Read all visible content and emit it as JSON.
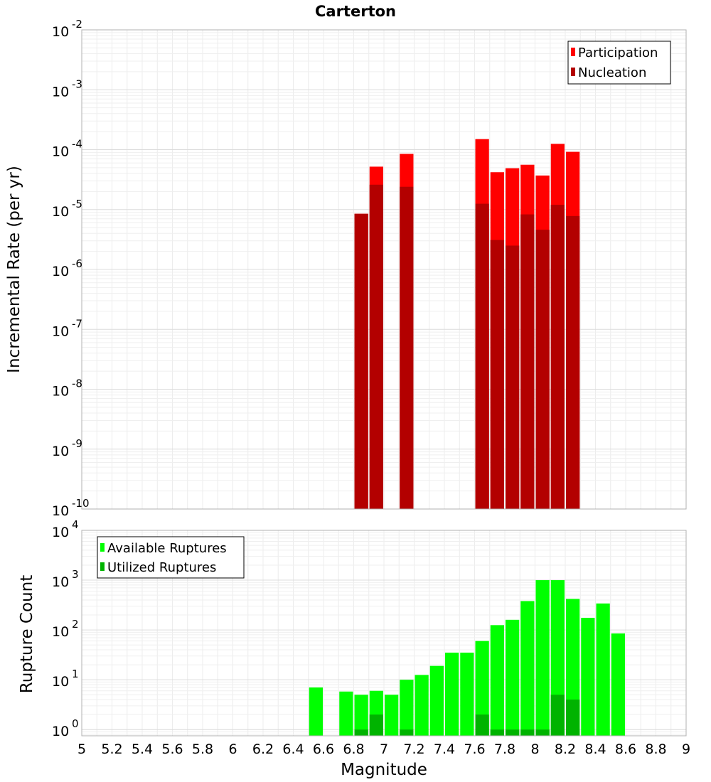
{
  "chart_data": [
    {
      "type": "bar",
      "title": "Carterton",
      "ylabel": "Incremental Rate (per yr)",
      "xlim": [
        5,
        9
      ],
      "ylim": [
        1e-10,
        0.01
      ],
      "yscale": "log",
      "grid": true,
      "legend": "top-right",
      "y_ticks": [
        {
          "base": "10",
          "exp": "-10"
        },
        {
          "base": "10",
          "exp": "-9"
        },
        {
          "base": "10",
          "exp": "-8"
        },
        {
          "base": "10",
          "exp": "-7"
        },
        {
          "base": "10",
          "exp": "-6"
        },
        {
          "base": "10",
          "exp": "-5"
        },
        {
          "base": "10",
          "exp": "-4"
        },
        {
          "base": "10",
          "exp": "-3"
        },
        {
          "base": "10",
          "exp": "-2"
        }
      ],
      "series": [
        {
          "name": "Participation",
          "color": "#ff0000",
          "points": [
            {
              "x": 6.85,
              "y": 8.5e-06
            },
            {
              "x": 6.95,
              "y": 5.2e-05
            },
            {
              "x": 7.15,
              "y": 8.5e-05
            },
            {
              "x": 7.65,
              "y": 0.00015
            },
            {
              "x": 7.75,
              "y": 4.2e-05
            },
            {
              "x": 7.85,
              "y": 4.9e-05
            },
            {
              "x": 7.95,
              "y": 5.6e-05
            },
            {
              "x": 8.05,
              "y": 3.7e-05
            },
            {
              "x": 8.15,
              "y": 0.000125
            },
            {
              "x": 8.25,
              "y": 9.2e-05
            }
          ]
        },
        {
          "name": "Nucleation",
          "color": "#b30000",
          "points": [
            {
              "x": 6.85,
              "y": 8.5e-06
            },
            {
              "x": 6.95,
              "y": 2.6e-05
            },
            {
              "x": 7.15,
              "y": 2.4e-05
            },
            {
              "x": 7.65,
              "y": 1.25e-05
            },
            {
              "x": 7.75,
              "y": 3.1e-06
            },
            {
              "x": 7.85,
              "y": 2.5e-06
            },
            {
              "x": 7.95,
              "y": 8.3e-06
            },
            {
              "x": 8.05,
              "y": 4.6e-06
            },
            {
              "x": 8.15,
              "y": 1.2e-05
            },
            {
              "x": 8.25,
              "y": 7.8e-06
            }
          ]
        }
      ]
    },
    {
      "type": "bar",
      "xlabel": "Magnitude",
      "ylabel": "Rupture Count",
      "xlim": [
        5,
        9
      ],
      "ylim": [
        0.75,
        10000
      ],
      "yscale": "log",
      "grid": true,
      "legend": "top-left",
      "x_ticks": [
        "5",
        "5.2",
        "5.4",
        "5.6",
        "5.8",
        "6",
        "6.2",
        "6.4",
        "6.6",
        "6.8",
        "7",
        "7.2",
        "7.4",
        "7.6",
        "7.8",
        "8",
        "8.2",
        "8.4",
        "8.6",
        "8.8",
        "9"
      ],
      "y_ticks": [
        {
          "base": "10",
          "exp": "0"
        },
        {
          "base": "10",
          "exp": "1"
        },
        {
          "base": "10",
          "exp": "2"
        },
        {
          "base": "10",
          "exp": "3"
        },
        {
          "base": "10",
          "exp": "4"
        }
      ],
      "series": [
        {
          "name": "Available Ruptures",
          "color": "#00ff00",
          "points": [
            {
              "x": 6.55,
              "y": 7
            },
            {
              "x": 6.75,
              "y": 5.8
            },
            {
              "x": 6.85,
              "y": 5
            },
            {
              "x": 6.95,
              "y": 6
            },
            {
              "x": 7.05,
              "y": 5
            },
            {
              "x": 7.15,
              "y": 10
            },
            {
              "x": 7.25,
              "y": 12.5
            },
            {
              "x": 7.35,
              "y": 19
            },
            {
              "x": 7.45,
              "y": 35
            },
            {
              "x": 7.55,
              "y": 35
            },
            {
              "x": 7.65,
              "y": 60
            },
            {
              "x": 7.75,
              "y": 125
            },
            {
              "x": 7.85,
              "y": 160
            },
            {
              "x": 7.95,
              "y": 380
            },
            {
              "x": 8.05,
              "y": 1000
            },
            {
              "x": 8.15,
              "y": 1000
            },
            {
              "x": 8.25,
              "y": 420
            },
            {
              "x": 8.35,
              "y": 175
            },
            {
              "x": 8.45,
              "y": 340
            },
            {
              "x": 8.55,
              "y": 85
            }
          ]
        },
        {
          "name": "Utilized Ruptures",
          "color": "#00b300",
          "points": [
            {
              "x": 6.85,
              "y": 1
            },
            {
              "x": 6.95,
              "y": 2
            },
            {
              "x": 7.15,
              "y": 1
            },
            {
              "x": 7.65,
              "y": 2
            },
            {
              "x": 7.75,
              "y": 1
            },
            {
              "x": 7.85,
              "y": 1
            },
            {
              "x": 7.95,
              "y": 1
            },
            {
              "x": 8.05,
              "y": 1
            },
            {
              "x": 8.15,
              "y": 5
            },
            {
              "x": 8.25,
              "y": 4
            }
          ]
        }
      ]
    }
  ]
}
